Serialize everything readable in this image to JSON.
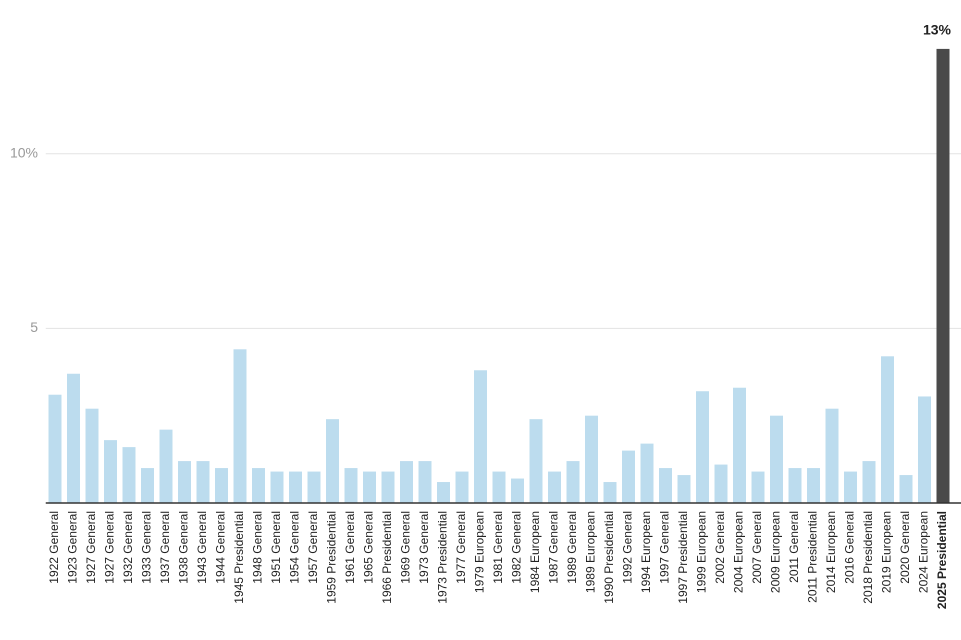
{
  "chart_data": {
    "type": "bar",
    "categories": [
      "1922 General",
      "1923 General",
      "1927 General",
      "1927 General",
      "1932 General",
      "1933 General",
      "1937 General",
      "1938 General",
      "1943 General",
      "1944 General",
      "1945 Presidential",
      "1948 General",
      "1951 General",
      "1954 General",
      "1957 General",
      "1959 Presidential",
      "1961 General",
      "1965 General",
      "1966 Presidential",
      "1969 General",
      "1973 General",
      "1973 Presidential",
      "1977 General",
      "1979 European",
      "1981 General",
      "1982 General",
      "1984 European",
      "1987 General",
      "1989 General",
      "1989 European",
      "1990 Presidential",
      "1992 General",
      "1994 European",
      "1997 General",
      "1997 Presidential",
      "1999 European",
      "2002 General",
      "2004 European",
      "2007 General",
      "2009 European",
      "2011 General",
      "2011 Presidential",
      "2014 European",
      "2016 General",
      "2018 Presidential",
      "2019 European",
      "2020 General",
      "2024 European",
      "2025 Presidential"
    ],
    "values": [
      3.1,
      3.7,
      2.7,
      1.8,
      1.6,
      1.0,
      2.1,
      1.2,
      1.2,
      1.0,
      4.4,
      1.0,
      0.9,
      0.9,
      0.9,
      2.4,
      1.0,
      0.9,
      0.9,
      1.2,
      1.2,
      0.6,
      0.9,
      3.8,
      0.9,
      0.7,
      2.4,
      0.9,
      1.2,
      2.5,
      0.6,
      1.5,
      1.7,
      1.0,
      0.8,
      3.2,
      1.1,
      3.3,
      0.9,
      2.5,
      1.0,
      1.0,
      2.7,
      0.9,
      1.2,
      4.2,
      0.8,
      3.05,
      13
    ],
    "value_labels": [
      null,
      null,
      null,
      null,
      null,
      null,
      null,
      null,
      null,
      null,
      null,
      null,
      null,
      null,
      null,
      null,
      null,
      null,
      null,
      null,
      null,
      null,
      null,
      null,
      null,
      null,
      null,
      null,
      null,
      null,
      null,
      null,
      null,
      null,
      null,
      null,
      null,
      null,
      null,
      null,
      null,
      null,
      null,
      null,
      null,
      null,
      null,
      null,
      "13%"
    ],
    "colors": [
      "#bcdcee",
      "#bcdcee",
      "#bcdcee",
      "#bcdcee",
      "#bcdcee",
      "#bcdcee",
      "#bcdcee",
      "#bcdcee",
      "#bcdcee",
      "#bcdcee",
      "#bcdcee",
      "#bcdcee",
      "#bcdcee",
      "#bcdcee",
      "#bcdcee",
      "#bcdcee",
      "#bcdcee",
      "#bcdcee",
      "#bcdcee",
      "#bcdcee",
      "#bcdcee",
      "#bcdcee",
      "#bcdcee",
      "#bcdcee",
      "#bcdcee",
      "#bcdcee",
      "#bcdcee",
      "#bcdcee",
      "#bcdcee",
      "#bcdcee",
      "#bcdcee",
      "#bcdcee",
      "#bcdcee",
      "#bcdcee",
      "#bcdcee",
      "#bcdcee",
      "#bcdcee",
      "#bcdcee",
      "#bcdcee",
      "#bcdcee",
      "#bcdcee",
      "#bcdcee",
      "#bcdcee",
      "#bcdcee",
      "#bcdcee",
      "#bcdcee",
      "#bcdcee",
      "#bcdcee",
      "#4a4a4a"
    ],
    "ylim": [
      0,
      14.4
    ],
    "yticks": [
      5,
      {
        "value": 10,
        "label": "10%"
      }
    ],
    "grid": true
  }
}
